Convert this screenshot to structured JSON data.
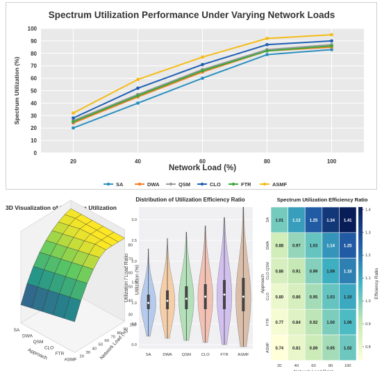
{
  "chart_data": [
    {
      "type": "line",
      "title": "Spectrum Utilization Performance Under Varying Network Loads",
      "xlabel": "Network Load (%)",
      "ylabel": "Spectrum Utilization (%)",
      "x": [
        20,
        40,
        60,
        80,
        100
      ],
      "ylim": [
        0,
        100
      ],
      "yticks": [
        0,
        10,
        20,
        30,
        40,
        50,
        60,
        70,
        80,
        90,
        100
      ],
      "grid": true,
      "legend_position": "bottom",
      "series": [
        {
          "name": "SA",
          "color": "#2a8fbf",
          "values": [
            20,
            40,
            60,
            79,
            83
          ]
        },
        {
          "name": "DWA",
          "color": "#f07f2a",
          "values": [
            24,
            45,
            65,
            82,
            85
          ]
        },
        {
          "name": "QSM",
          "color": "#9a9a9a",
          "values": [
            26,
            47,
            67,
            83,
            87
          ]
        },
        {
          "name": "CLO",
          "color": "#1f5fb4",
          "values": [
            28,
            52,
            71,
            87,
            90
          ]
        },
        {
          "name": "FTR",
          "color": "#3aa83a",
          "values": [
            25,
            46,
            66,
            82,
            86
          ]
        },
        {
          "name": "ASMF",
          "color": "#f5bb16",
          "values": [
            32,
            59,
            77,
            92,
            95
          ]
        }
      ]
    },
    {
      "type": "surface",
      "title": "3D Visualization of Spectrum Utilization",
      "xlabel": "Approach",
      "ylabel": "Network Load (%)",
      "zlabel": "Utilization (%)",
      "approaches": [
        "SA",
        "DWA",
        "QSM",
        "CLO",
        "FTR",
        "ASMF"
      ],
      "loads": [
        20,
        30,
        40,
        50,
        60,
        70,
        80,
        90,
        100
      ],
      "load_ticks": [
        20,
        30,
        40,
        50,
        60,
        70,
        80,
        90,
        100
      ],
      "z_ticks": [
        30,
        40,
        50,
        60,
        70,
        80
      ],
      "colormap": "viridis"
    },
    {
      "type": "violin",
      "title": "Distribution of Utilization Efficiency Ratio",
      "ylabel": "Utilization / Load Ratio",
      "categories": [
        "SA",
        "DWA",
        "QSM",
        "CLO",
        "FTR",
        "ASMF"
      ],
      "ylim": [
        -0.1,
        3.3
      ],
      "yticks": [
        0.0,
        0.5,
        1.0,
        1.5,
        2.0,
        2.5,
        3.0
      ],
      "colors": [
        "#a9c4ec",
        "#f6c89a",
        "#a8dcae",
        "#f2b9a8",
        "#cdb7ec",
        "#d6b59b"
      ],
      "distributions": [
        {
          "name": "SA",
          "min": 0.2,
          "max": 2.3,
          "q1": 0.85,
          "median": 1.0,
          "q3": 1.2
        },
        {
          "name": "DWA",
          "min": 0.15,
          "max": 2.55,
          "q1": 0.85,
          "median": 1.05,
          "q3": 1.3
        },
        {
          "name": "QSM",
          "min": 0.1,
          "max": 2.7,
          "q1": 0.85,
          "median": 1.1,
          "q3": 1.4
        },
        {
          "name": "CLO",
          "min": 0.05,
          "max": 2.85,
          "q1": 0.85,
          "median": 1.15,
          "q3": 1.45
        },
        {
          "name": "FTR",
          "min": 0.0,
          "max": 3.05,
          "q1": 0.85,
          "median": 1.2,
          "q3": 1.55
        },
        {
          "name": "ASMF",
          "min": -0.05,
          "max": 3.3,
          "q1": 0.8,
          "median": 1.15,
          "q3": 1.6
        }
      ]
    },
    {
      "type": "heatmap",
      "title": "Spectrum Utilization Efficiency Ratio",
      "xlabel": "Network Load Point",
      "ylabel": "Approach",
      "colorbar_label": "Efficiency Ratio",
      "colorbar_ticks": [
        0.8,
        0.9,
        1.0,
        1.1,
        1.2,
        1.3,
        1.4
      ],
      "colorbar_range": [
        0.74,
        1.41
      ],
      "colormap": "YlGnBu",
      "columns": [
        "20",
        "40",
        "60",
        "80",
        "100"
      ],
      "rows": [
        "SA",
        "DWA",
        "CLO QSM",
        "CLO",
        "FTR",
        "ASMF"
      ],
      "values": [
        [
          1.01,
          1.12,
          1.25,
          1.34,
          1.41
        ],
        [
          0.88,
          0.97,
          1.03,
          1.14,
          1.25
        ],
        [
          0.86,
          0.91,
          0.99,
          1.09,
          1.18
        ],
        [
          0.8,
          0.86,
          0.95,
          1.03,
          1.1
        ],
        [
          0.77,
          0.84,
          0.92,
          1.0,
          1.06
        ],
        [
          0.74,
          0.81,
          0.89,
          0.95,
          1.02
        ]
      ],
      "labels": [
        [
          "1.01",
          "1.12",
          "1.25",
          "1.34",
          "1.41"
        ],
        [
          "0.88",
          "0.97",
          "1.03",
          "1.14",
          "1.25"
        ],
        [
          "0.86",
          "0.91",
          "0.99",
          "1.09",
          "1.18"
        ],
        [
          "0.80",
          "0.86",
          "0.95",
          "1.03",
          "1.10"
        ],
        [
          "0.77",
          "0.84",
          "0.92",
          "1.00",
          "1.06"
        ],
        [
          "0.74",
          "0.81",
          "0.89",
          "0.95",
          "1.02"
        ]
      ]
    }
  ]
}
